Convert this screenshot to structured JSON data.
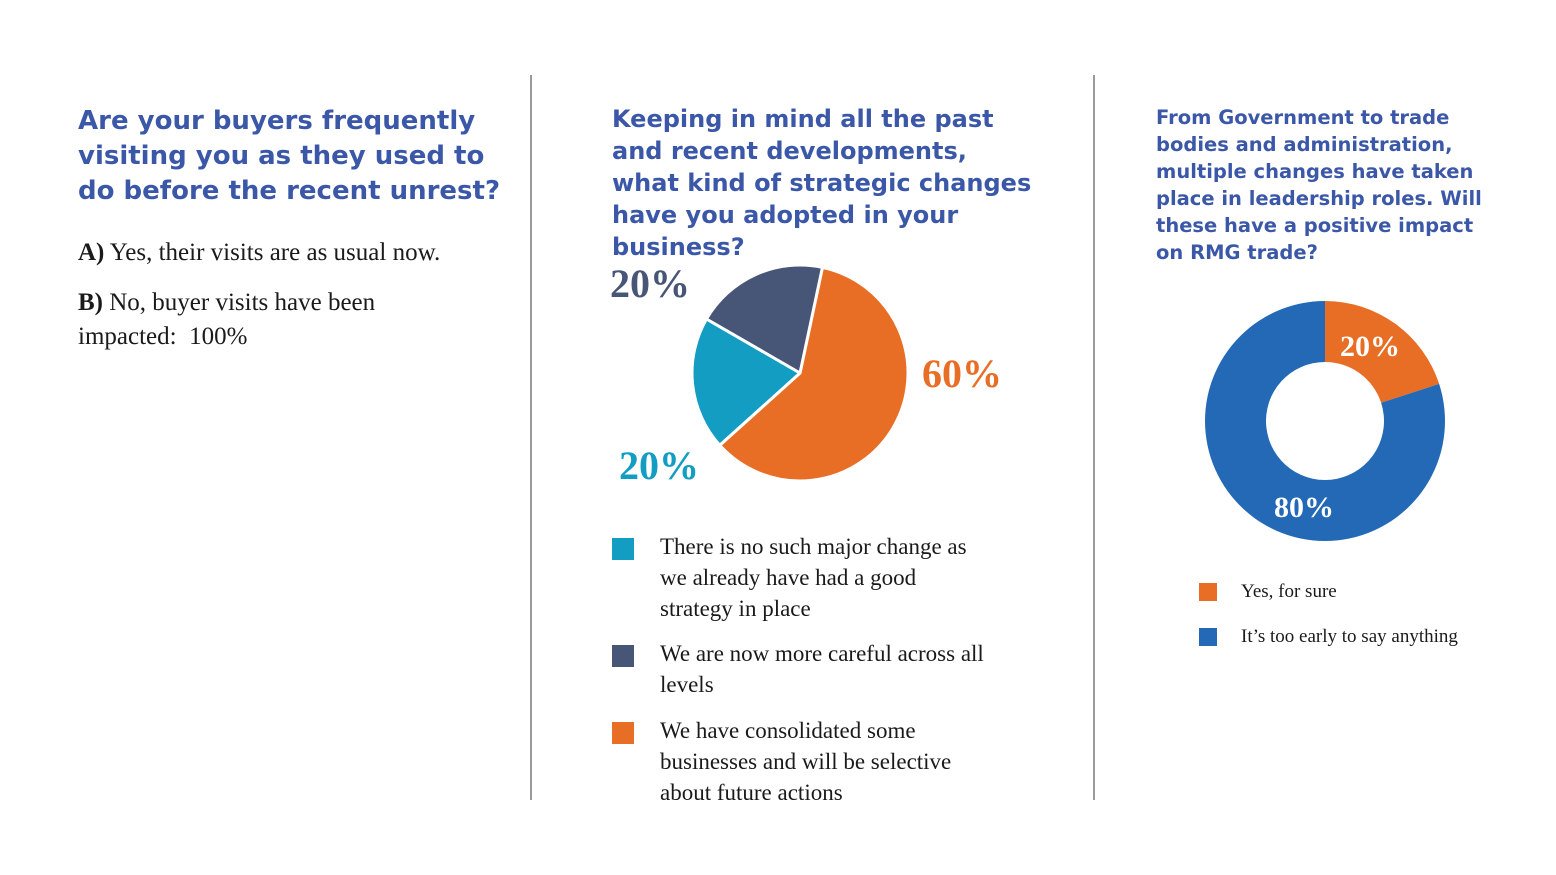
{
  "panel1": {
    "question": "Are your buyers frequently visiting you as they used to do before the recent unrest?",
    "answer_a": {
      "letter": "A)",
      "text": "Yes, their visits are as usual now."
    },
    "answer_b": {
      "letter": "B)",
      "text": "No, buyer visits have been impacted:",
      "value": "100%"
    }
  },
  "panel2": {
    "question": "Keeping in mind all the past and recent developments, what kind of strategic changes have you adopted in your business?"
  },
  "panel3": {
    "question": "From Government to trade bodies and administration, multiple changes have taken place in leadership roles. Will these have a positive impact on RMG trade?"
  },
  "chart_data": [
    {
      "type": "pie",
      "labels": [
        "We have consolidated some businesses and will be selective about future actions",
        "There is no such major change as we already have had a good strategy in place",
        "We are now more careful across all levels"
      ],
      "values": [
        60,
        20,
        20
      ],
      "data_labels": [
        "60%",
        "20%",
        "20%"
      ],
      "colors": [
        "#e86e26",
        "#139dc2",
        "#475577"
      ],
      "legend": [
        {
          "label": "There is no such major change as we already have had a good strategy in place",
          "color": "#139dc2"
        },
        {
          "label": "We are now more careful across all levels",
          "color": "#475577"
        },
        {
          "label": "We have consolidated some businesses and will be selective about future actions",
          "color": "#e86e26"
        }
      ],
      "legend_position": "bottom"
    },
    {
      "type": "pie",
      "donut": true,
      "labels": [
        "Yes, for sure",
        "It’s too early to say anything"
      ],
      "values": [
        20,
        80
      ],
      "data_labels": [
        "20%",
        "80%"
      ],
      "colors": [
        "#e86e26",
        "#2469b6"
      ],
      "legend": [
        {
          "label": "Yes, for sure",
          "color": "#e86e26"
        },
        {
          "label": "It’s too early to say anything",
          "color": "#2469b6"
        }
      ],
      "legend_position": "bottom"
    }
  ]
}
